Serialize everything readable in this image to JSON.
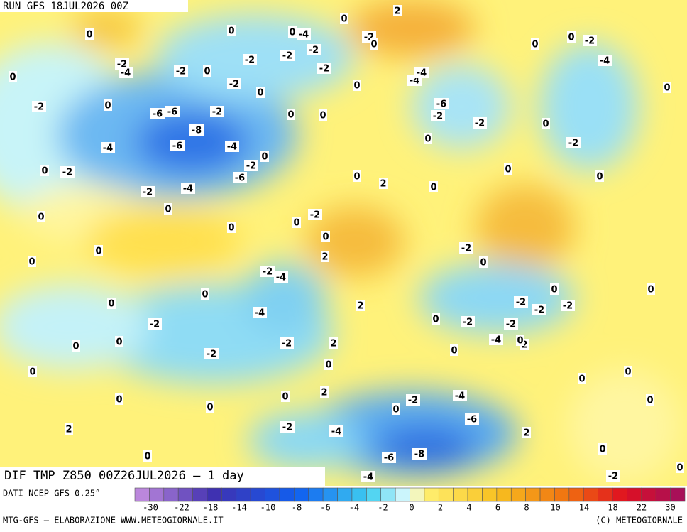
{
  "header": {
    "run": "RUN GFS 18JUL2026 00Z"
  },
  "map": {
    "labels": [
      -2,
      0,
      -2,
      -4,
      -2,
      0,
      -2,
      -2,
      0,
      -4,
      -2,
      -2,
      -2,
      0,
      0,
      0,
      -2,
      0,
      -6,
      -6,
      -2,
      -8,
      -6,
      -4,
      0,
      -2,
      -6,
      -4,
      0,
      -2,
      -2,
      -4,
      0,
      0,
      0,
      0,
      0,
      0,
      0,
      0,
      0,
      0,
      0,
      2,
      0,
      -2,
      0,
      0,
      2,
      -2,
      -4,
      0,
      0,
      -4,
      -2,
      0,
      0,
      -2,
      -2,
      2,
      0,
      0,
      2,
      2,
      0,
      0,
      0,
      0,
      -2,
      -4,
      -6,
      -2,
      -4,
      2,
      0,
      -6,
      -8,
      -4,
      2,
      0,
      -2,
      0,
      0,
      0,
      0,
      2,
      0,
      -4,
      0,
      -2,
      -2,
      0,
      -2,
      -2,
      -2,
      0,
      0,
      0,
      -2,
      0,
      0,
      -2,
      0,
      -2,
      0,
      -2,
      -6,
      -4,
      -4,
      0,
      0,
      -2,
      -4,
      0,
      2
    ]
  },
  "footer": {
    "product": "DIF TMP Z850 00Z26JUL2026 — 1 day",
    "source": "DATI NCEP GFS 0.25°",
    "credit": "MTG-GFS — ELABORAZIONE WWW.METEOGIORNALE.IT",
    "copyright": "(C) METEOGIORNALE"
  },
  "colorbar": {
    "ticks": [
      -30,
      -22,
      -18,
      -14,
      -10,
      -8,
      -6,
      -4,
      -2,
      0,
      2,
      4,
      6,
      8,
      10,
      14,
      18,
      22,
      30
    ]
  }
}
